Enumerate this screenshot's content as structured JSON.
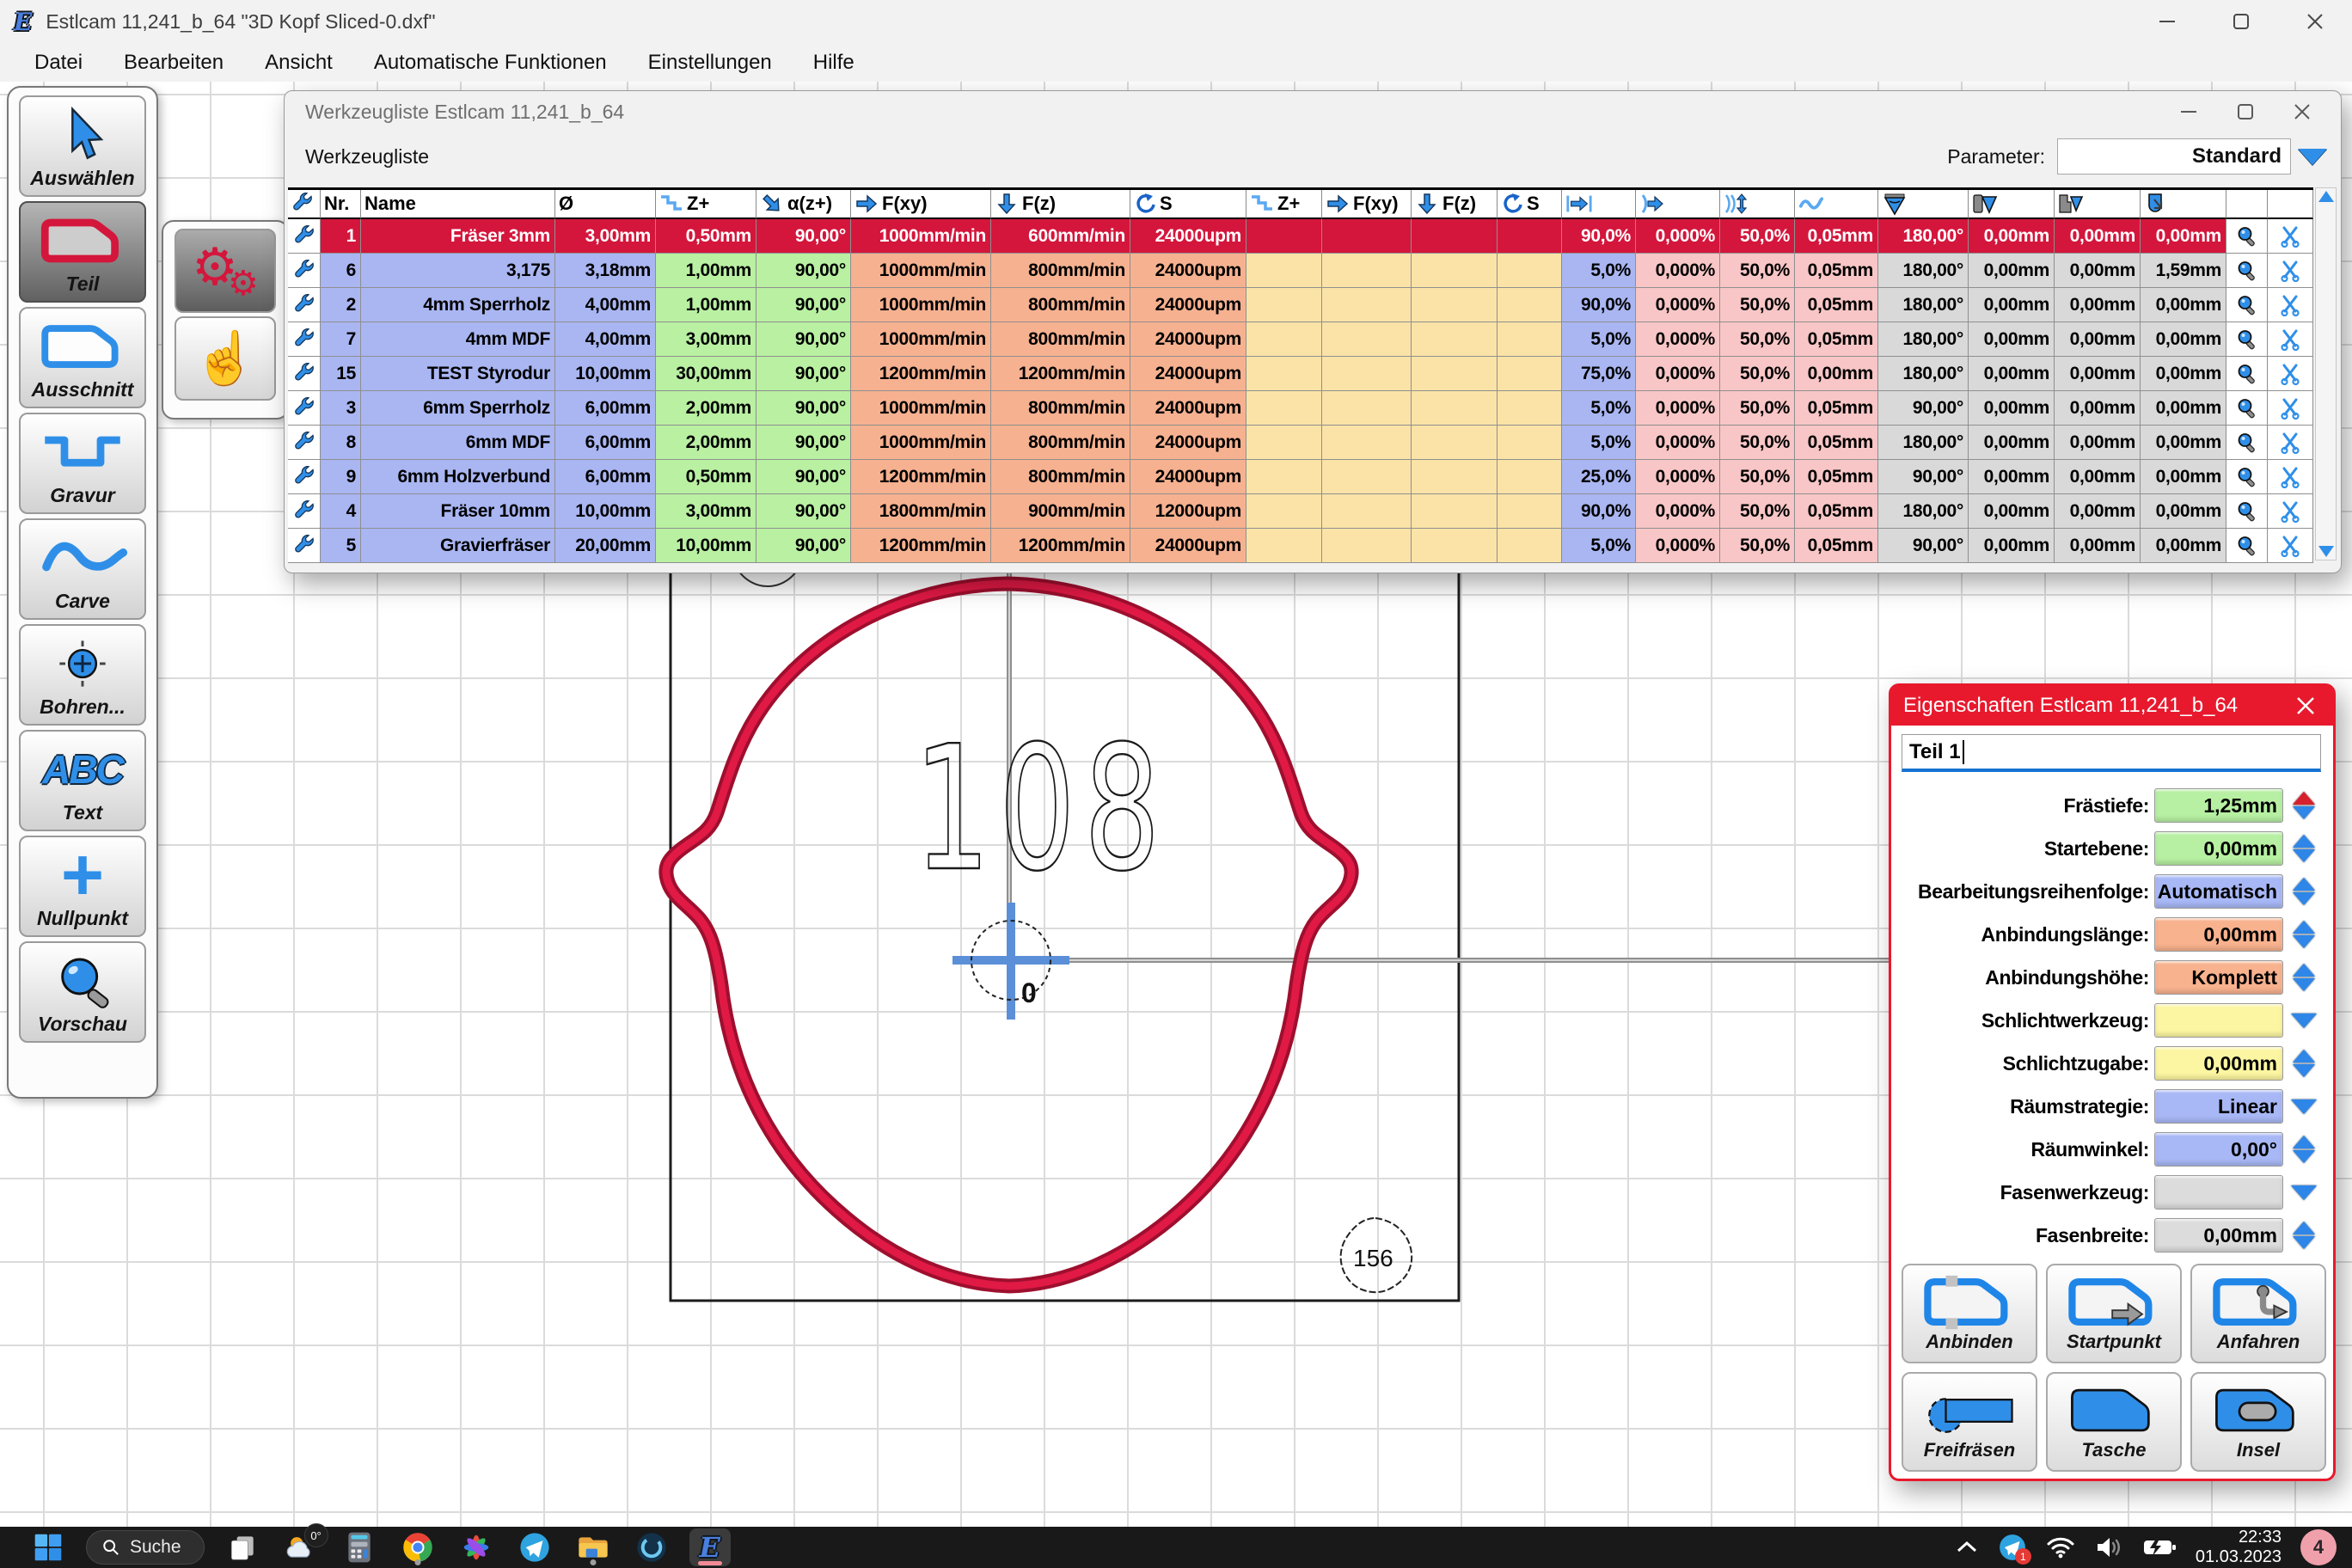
{
  "window": {
    "title": "Estlcam 11,241_b_64 \"3D Kopf Sliced-0.dxf\""
  },
  "menu": {
    "items": [
      "Datei",
      "Bearbeiten",
      "Ansicht",
      "Automatische Funktionen",
      "Einstellungen",
      "Hilfe"
    ]
  },
  "left_toolbar": {
    "buttons": [
      {
        "label": "Auswählen",
        "icon": "cursor-icon",
        "selected": false
      },
      {
        "label": "Teil",
        "icon": "part-outline-icon",
        "selected": true
      },
      {
        "label": "Ausschnitt",
        "icon": "cutout-outline-icon",
        "selected": false
      },
      {
        "label": "Gravur",
        "icon": "engrave-channel-icon",
        "selected": false
      },
      {
        "label": "Carve",
        "icon": "carve-wave-icon",
        "selected": false
      },
      {
        "label": "Bohren...",
        "icon": "drill-crosshair-icon",
        "selected": false
      },
      {
        "label": "Text",
        "icon": "abc-text-icon",
        "selected": false
      },
      {
        "label": "Nullpunkt",
        "icon": "zero-point-cross-icon",
        "selected": false
      },
      {
        "label": "Vorschau",
        "icon": "preview-magnifier-icon",
        "selected": false
      }
    ]
  },
  "flyout": {
    "buttons": [
      {
        "icon": "machining-gears-icon",
        "selected": true
      },
      {
        "icon": "manual-hand-icon",
        "selected": false
      }
    ]
  },
  "tool_window": {
    "title": "Werkzeugliste Estlcam 11,241_b_64",
    "list_label": "Werkzeugliste",
    "parameter_label": "Parameter:",
    "parameter_value": "Standard",
    "columns": [
      {
        "icon": "wrench-icon",
        "label": ""
      },
      {
        "label": "Nr."
      },
      {
        "label": "Name"
      },
      {
        "label": "Ø"
      },
      {
        "icon": "stepdown-icon",
        "label": "Z+"
      },
      {
        "icon": "plunge-angle-icon",
        "label": "α(z+)"
      },
      {
        "icon": "feed-right-icon",
        "label": "F(xy)"
      },
      {
        "icon": "feed-down-icon",
        "label": "F(z)"
      },
      {
        "icon": "spindle-icon",
        "label": "S"
      },
      {
        "icon": "stepdown-icon",
        "label": "Z+"
      },
      {
        "icon": "feed-right-icon",
        "label": "F(xy)"
      },
      {
        "icon": "feed-down-icon",
        "label": "F(z)"
      },
      {
        "icon": "spindle-icon",
        "label": "S"
      },
      {
        "icon": "width-arrow-icon",
        "label": ""
      },
      {
        "icon": "arc-arrow-icon",
        "label": ""
      },
      {
        "icon": "arc-updown-icon",
        "label": ""
      },
      {
        "icon": "wave-icon",
        "label": ""
      },
      {
        "icon": "vcarve-cone-icon",
        "label": ""
      },
      {
        "icon": "cone-tool-icon",
        "label": ""
      },
      {
        "icon": "cone-tool-alt-icon",
        "label": ""
      },
      {
        "icon": "roundnose-icon",
        "label": ""
      },
      {
        "label": ""
      },
      {
        "label": ""
      }
    ],
    "rows": [
      {
        "selected": true,
        "cells": [
          "1",
          "Fräser 3mm",
          "3,00mm",
          "0,50mm",
          "90,00°",
          "1000mm/min",
          "600mm/min",
          "24000upm",
          "",
          "",
          "",
          "",
          "90,0%",
          "0,000%",
          "50,0%",
          "0,05mm",
          "180,00°",
          "0,00mm",
          "0,00mm",
          "0,00mm"
        ]
      },
      {
        "selected": false,
        "cells": [
          "6",
          "3,175",
          "3,18mm",
          "1,00mm",
          "90,00°",
          "1000mm/min",
          "800mm/min",
          "24000upm",
          "",
          "",
          "",
          "",
          "5,0%",
          "0,000%",
          "50,0%",
          "0,05mm",
          "180,00°",
          "0,00mm",
          "0,00mm",
          "1,59mm"
        ]
      },
      {
        "selected": false,
        "cells": [
          "2",
          "4mm Sperrholz",
          "4,00mm",
          "1,00mm",
          "90,00°",
          "1000mm/min",
          "800mm/min",
          "24000upm",
          "",
          "",
          "",
          "",
          "90,0%",
          "0,000%",
          "50,0%",
          "0,05mm",
          "180,00°",
          "0,00mm",
          "0,00mm",
          "0,00mm"
        ]
      },
      {
        "selected": false,
        "cells": [
          "7",
          "4mm MDF",
          "4,00mm",
          "3,00mm",
          "90,00°",
          "1000mm/min",
          "800mm/min",
          "24000upm",
          "",
          "",
          "",
          "",
          "5,0%",
          "0,000%",
          "50,0%",
          "0,05mm",
          "180,00°",
          "0,00mm",
          "0,00mm",
          "0,00mm"
        ]
      },
      {
        "selected": false,
        "cells": [
          "15",
          "TEST Styrodur",
          "10,00mm",
          "30,00mm",
          "90,00°",
          "1200mm/min",
          "1200mm/min",
          "24000upm",
          "",
          "",
          "",
          "",
          "75,0%",
          "0,000%",
          "50,0%",
          "0,00mm",
          "180,00°",
          "0,00mm",
          "0,00mm",
          "0,00mm"
        ]
      },
      {
        "selected": false,
        "cells": [
          "3",
          "6mm Sperrholz",
          "6,00mm",
          "2,00mm",
          "90,00°",
          "1000mm/min",
          "800mm/min",
          "24000upm",
          "",
          "",
          "",
          "",
          "5,0%",
          "0,000%",
          "50,0%",
          "0,05mm",
          "90,00°",
          "0,00mm",
          "0,00mm",
          "0,00mm"
        ]
      },
      {
        "selected": false,
        "cells": [
          "8",
          "6mm MDF",
          "6,00mm",
          "2,00mm",
          "90,00°",
          "1000mm/min",
          "800mm/min",
          "24000upm",
          "",
          "",
          "",
          "",
          "5,0%",
          "0,000%",
          "50,0%",
          "0,05mm",
          "180,00°",
          "0,00mm",
          "0,00mm",
          "0,00mm"
        ]
      },
      {
        "selected": false,
        "cells": [
          "9",
          "6mm Holzverbund",
          "6,00mm",
          "0,50mm",
          "90,00°",
          "1200mm/min",
          "800mm/min",
          "24000upm",
          "",
          "",
          "",
          "",
          "25,0%",
          "0,000%",
          "50,0%",
          "0,05mm",
          "90,00°",
          "0,00mm",
          "0,00mm",
          "0,00mm"
        ]
      },
      {
        "selected": false,
        "cells": [
          "4",
          "Fräser 10mm",
          "10,00mm",
          "3,00mm",
          "90,00°",
          "1800mm/min",
          "900mm/min",
          "12000upm",
          "",
          "",
          "",
          "",
          "90,0%",
          "0,000%",
          "50,0%",
          "0,05mm",
          "180,00°",
          "0,00mm",
          "0,00mm",
          "0,00mm"
        ]
      },
      {
        "selected": false,
        "cells": [
          "5",
          "Gravierfräser",
          "20,00mm",
          "10,00mm",
          "90,00°",
          "1200mm/min",
          "1200mm/min",
          "24000upm",
          "",
          "",
          "",
          "",
          "5,0%",
          "0,000%",
          "50,0%",
          "0,05mm",
          "90,00°",
          "0,00mm",
          "0,00mm",
          "0,00mm"
        ]
      }
    ]
  },
  "properties_window": {
    "title": "Eigenschaften Estlcam 11,241_b_64",
    "name_value": "Teil 1",
    "fields": [
      {
        "label": "Frästiefe:",
        "value": "1,25mm",
        "style": "green",
        "spinner": "up-red-down-blue"
      },
      {
        "label": "Startebene:",
        "value": "0,00mm",
        "style": "green",
        "spinner": "up-down"
      },
      {
        "label": "Bearbeitungsreihenfolge:",
        "value": "Automatisch",
        "style": "blue",
        "spinner": "up-down"
      },
      {
        "label": "Anbindungslänge:",
        "value": "0,00mm",
        "style": "orange",
        "spinner": "up-down"
      },
      {
        "label": "Anbindungshöhe:",
        "value": "Komplett",
        "style": "orange",
        "spinner": "up-down"
      },
      {
        "label": "Schlichtwerkzeug:",
        "value": "",
        "style": "yellow",
        "spinner": "down"
      },
      {
        "label": "Schlichtzugabe:",
        "value": "0,00mm",
        "style": "yellow",
        "spinner": "up-down"
      },
      {
        "label": "Räumstrategie:",
        "value": "Linear",
        "style": "blue",
        "spinner": "down"
      },
      {
        "label": "Räumwinkel:",
        "value": "0,00°",
        "style": "blue",
        "spinner": "up-down"
      },
      {
        "label": "Fasenwerkzeug:",
        "value": "",
        "style": "gray",
        "spinner": "down"
      },
      {
        "label": "Fasenbreite:",
        "value": "0,00mm",
        "style": "gray",
        "spinner": "up-down"
      }
    ],
    "buttons": [
      {
        "label": "Anbinden",
        "icon": "tabs-outline-icon"
      },
      {
        "label": "Startpunkt",
        "icon": "startpoint-outline-icon"
      },
      {
        "label": "Anfahren",
        "icon": "leadin-outline-icon"
      },
      {
        "label": "Freifräsen",
        "icon": "freemill-icon"
      },
      {
        "label": "Tasche",
        "icon": "pocket-icon"
      },
      {
        "label": "Insel",
        "icon": "island-icon"
      }
    ]
  },
  "canvas": {
    "dimension_label": "108",
    "origin_label": "0",
    "station_label": "156"
  },
  "taskbar": {
    "search_label": "Suche",
    "weather_temp": "0°",
    "telegram_badge": "1",
    "clock_time": "22:33",
    "clock_date": "01.03.2023",
    "notification_count": "4",
    "apps": [
      {
        "icon": "taskview-icon"
      },
      {
        "icon": "weather-icon"
      },
      {
        "icon": "calculator-icon"
      },
      {
        "icon": "chrome-icon",
        "running": true
      },
      {
        "icon": "photos-icon"
      },
      {
        "icon": "telegram-icon"
      },
      {
        "icon": "explorer-icon",
        "running": true
      },
      {
        "icon": "opera-icon"
      },
      {
        "icon": "estlcam-icon",
        "active": true
      }
    ]
  }
}
